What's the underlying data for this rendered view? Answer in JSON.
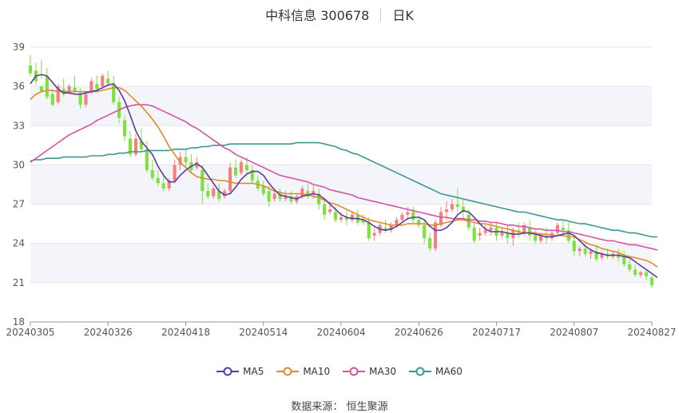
{
  "header": {
    "stock_name": "中科信息 300678",
    "period": "日K"
  },
  "footer": {
    "source_label": "数据来源：",
    "source_name": "恒生聚源"
  },
  "colors": {
    "up": "#f4807f",
    "down": "#7fe13f",
    "ma5": "#5b3b9e",
    "ma10": "#e08a2c",
    "ma30": "#d454a4",
    "ma60": "#3d9696",
    "band": "#f4f5fb"
  },
  "chart_data": {
    "type": "candlestick",
    "ylim": [
      18,
      39
    ],
    "yticks": [
      18,
      21,
      24,
      27,
      30,
      33,
      36,
      39
    ],
    "xticks": [
      "20240305",
      "20240326",
      "20240418",
      "20240514",
      "20240604",
      "20240626",
      "20240717",
      "20240807",
      "20240827"
    ],
    "legend": [
      "MA5",
      "MA10",
      "MA30",
      "MA60"
    ],
    "candles": [
      [
        37.6,
        38.4,
        37.0,
        36.8
      ],
      [
        37.2,
        37.8,
        36.4,
        36.1
      ],
      [
        36.0,
        38.0,
        35.6,
        36.6
      ],
      [
        36.8,
        37.4,
        35.2,
        35.0
      ],
      [
        35.4,
        35.8,
        34.6,
        34.5
      ],
      [
        34.8,
        36.2,
        36.0,
        34.6
      ],
      [
        35.8,
        36.6,
        35.4,
        35.2
      ],
      [
        35.6,
        36.2,
        36.0,
        35.4
      ],
      [
        35.9,
        36.8,
        35.6,
        35.5
      ],
      [
        35.5,
        35.9,
        34.6,
        34.3
      ],
      [
        34.6,
        35.6,
        35.4,
        34.4
      ],
      [
        35.6,
        36.6,
        36.4,
        35.4
      ],
      [
        36.2,
        36.8,
        35.8,
        35.6
      ],
      [
        36.0,
        37.0,
        36.8,
        35.8
      ],
      [
        36.6,
        37.2,
        36.2,
        36.0
      ],
      [
        36.2,
        36.8,
        34.8,
        34.6
      ],
      [
        34.8,
        35.2,
        33.6,
        33.2
      ],
      [
        33.4,
        33.8,
        32.2,
        31.8
      ],
      [
        32.0,
        32.6,
        30.8,
        30.6
      ],
      [
        30.8,
        32.4,
        32.0,
        30.6
      ],
      [
        31.8,
        32.8,
        31.2,
        31.0
      ],
      [
        31.2,
        31.8,
        29.6,
        29.4
      ],
      [
        29.6,
        30.4,
        29.0,
        28.8
      ],
      [
        29.0,
        29.6,
        28.6,
        28.4
      ],
      [
        28.6,
        29.4,
        28.2,
        28.0
      ],
      [
        28.2,
        29.0,
        28.8,
        28.0
      ],
      [
        28.8,
        30.4,
        30.0,
        28.6
      ],
      [
        30.0,
        31.0,
        30.6,
        29.6
      ],
      [
        30.6,
        31.2,
        30.2,
        29.8
      ],
      [
        30.2,
        30.8,
        29.6,
        29.4
      ],
      [
        29.8,
        30.6,
        30.2,
        29.6
      ],
      [
        29.6,
        30.0,
        28.0,
        27.0
      ],
      [
        28.0,
        28.6,
        27.6,
        27.4
      ],
      [
        27.6,
        28.4,
        28.2,
        27.4
      ],
      [
        28.0,
        28.6,
        27.4,
        27.2
      ],
      [
        27.6,
        28.2,
        28.0,
        27.4
      ],
      [
        28.0,
        30.2,
        29.8,
        27.8
      ],
      [
        29.8,
        30.4,
        29.2,
        29.0
      ],
      [
        29.4,
        30.4,
        30.2,
        29.2
      ],
      [
        30.0,
        30.6,
        29.6,
        29.2
      ],
      [
        29.6,
        30.0,
        28.8,
        28.6
      ],
      [
        28.8,
        29.2,
        28.2,
        28.0
      ],
      [
        28.4,
        28.8,
        27.8,
        27.6
      ],
      [
        28.0,
        28.4,
        27.2,
        26.8
      ],
      [
        27.4,
        28.0,
        27.8,
        27.2
      ],
      [
        27.8,
        28.2,
        27.4,
        27.2
      ],
      [
        27.4,
        28.0,
        27.6,
        27.2
      ],
      [
        27.6,
        28.0,
        27.2,
        27.0
      ],
      [
        27.2,
        27.8,
        27.6,
        27.0
      ],
      [
        27.6,
        28.4,
        28.2,
        27.4
      ],
      [
        28.0,
        28.6,
        27.6,
        27.4
      ],
      [
        27.8,
        28.4,
        28.0,
        27.4
      ],
      [
        27.8,
        28.2,
        27.0,
        26.6
      ],
      [
        27.0,
        27.4,
        26.2,
        25.8
      ],
      [
        26.4,
        27.0,
        26.6,
        26.2
      ],
      [
        26.4,
        26.8,
        25.8,
        25.6
      ],
      [
        25.8,
        26.4,
        26.0,
        25.6
      ],
      [
        26.0,
        26.6,
        25.8,
        25.4
      ],
      [
        25.8,
        26.4,
        26.2,
        25.6
      ],
      [
        26.2,
        26.6,
        25.6,
        25.4
      ],
      [
        25.8,
        26.2,
        25.6,
        25.4
      ],
      [
        25.6,
        26.0,
        24.4,
        24.2
      ],
      [
        24.6,
        25.2,
        24.8,
        24.2
      ],
      [
        24.8,
        25.6,
        25.4,
        24.6
      ],
      [
        25.2,
        25.8,
        25.0,
        24.8
      ],
      [
        25.0,
        25.6,
        25.4,
        24.8
      ],
      [
        25.4,
        26.0,
        25.8,
        25.2
      ],
      [
        25.8,
        26.4,
        26.2,
        25.6
      ],
      [
        26.2,
        26.8,
        26.4,
        25.8
      ],
      [
        26.4,
        26.8,
        25.8,
        25.6
      ],
      [
        25.8,
        26.2,
        25.4,
        25.2
      ],
      [
        25.4,
        25.8,
        24.4,
        24.0
      ],
      [
        24.4,
        24.8,
        23.6,
        23.4
      ],
      [
        23.6,
        25.8,
        25.6,
        23.4
      ],
      [
        25.4,
        26.8,
        26.4,
        25.2
      ],
      [
        26.4,
        27.2,
        26.6,
        25.8
      ],
      [
        26.6,
        27.4,
        27.0,
        26.4
      ],
      [
        27.0,
        28.2,
        26.8,
        26.4
      ],
      [
        26.8,
        27.4,
        26.4,
        25.8
      ],
      [
        26.2,
        26.6,
        25.2,
        25.0
      ],
      [
        25.2,
        25.6,
        24.2,
        24.0
      ],
      [
        24.6,
        25.2,
        24.8,
        24.2
      ],
      [
        24.8,
        25.4,
        25.0,
        24.6
      ],
      [
        25.0,
        25.6,
        25.2,
        24.6
      ],
      [
        25.2,
        25.6,
        24.6,
        24.2
      ],
      [
        24.6,
        25.2,
        24.9,
        24.4
      ],
      [
        24.8,
        25.4,
        24.4,
        24.0
      ],
      [
        24.4,
        25.2,
        25.0,
        23.8
      ],
      [
        25.0,
        25.6,
        24.8,
        24.4
      ],
      [
        24.8,
        25.6,
        25.4,
        24.6
      ],
      [
        25.2,
        25.8,
        24.6,
        24.2
      ],
      [
        24.6,
        25.0,
        24.2,
        24.0
      ],
      [
        24.2,
        24.8,
        24.6,
        24.0
      ],
      [
        24.6,
        25.2,
        24.4,
        24.0
      ],
      [
        24.4,
        25.0,
        24.8,
        24.2
      ],
      [
        24.8,
        25.6,
        25.4,
        24.6
      ],
      [
        25.2,
        25.8,
        25.0,
        24.6
      ],
      [
        25.0,
        25.6,
        24.2,
        24.0
      ],
      [
        24.2,
        24.6,
        23.4,
        23.0
      ],
      [
        23.4,
        23.8,
        23.6,
        23.0
      ],
      [
        23.6,
        24.0,
        23.2,
        23.0
      ],
      [
        23.2,
        23.6,
        23.4,
        22.8
      ],
      [
        23.4,
        23.8,
        22.8,
        22.6
      ],
      [
        22.9,
        23.4,
        23.2,
        22.7
      ],
      [
        23.2,
        23.6,
        23.0,
        22.8
      ],
      [
        23.0,
        23.4,
        23.2,
        22.8
      ],
      [
        23.2,
        23.6,
        22.9,
        22.6
      ],
      [
        23.0,
        23.4,
        22.4,
        22.2
      ],
      [
        22.4,
        22.8,
        22.0,
        21.8
      ],
      [
        22.0,
        22.4,
        21.6,
        21.4
      ],
      [
        21.6,
        21.9,
        21.8,
        21.4
      ],
      [
        21.8,
        22.0,
        21.5,
        21.2
      ],
      [
        21.4,
        21.6,
        20.8,
        20.6
      ]
    ],
    "ma5": [
      36.2,
      36.8,
      36.9,
      36.8,
      36.3,
      35.8,
      35.5,
      35.5,
      35.4,
      35.4,
      35.5,
      35.6,
      35.7,
      35.9,
      36.1,
      36.2,
      35.7,
      34.9,
      33.8,
      32.6,
      31.8,
      31.3,
      30.8,
      29.9,
      29.2,
      28.7,
      28.7,
      29.2,
      29.6,
      29.9,
      30.1,
      29.8,
      29.2,
      28.6,
      28.0,
      27.7,
      27.8,
      28.3,
      28.9,
      29.3,
      29.5,
      29.5,
      29.2,
      28.6,
      28.1,
      27.7,
      27.6,
      27.5,
      27.4,
      27.6,
      27.7,
      27.8,
      27.7,
      27.4,
      27.0,
      26.6,
      26.2,
      26.0,
      25.9,
      25.9,
      25.8,
      25.6,
      25.3,
      25.1,
      25.0,
      25.1,
      25.3,
      25.6,
      25.9,
      26.0,
      26.0,
      25.8,
      25.3,
      25.0,
      25.0,
      25.2,
      25.6,
      26.2,
      26.5,
      26.4,
      26.0,
      25.5,
      25.1,
      24.9,
      24.9,
      24.9,
      24.8,
      24.7,
      24.7,
      24.8,
      24.8,
      24.7,
      24.6,
      24.5,
      24.5,
      24.6,
      24.7,
      24.8,
      24.6,
      24.2,
      23.8,
      23.5,
      23.3,
      23.2,
      23.1,
      23.1,
      23.1,
      23.0,
      22.9,
      22.6,
      22.3,
      22.0,
      21.7,
      21.4
    ],
    "ma10": [
      35.0,
      35.4,
      35.6,
      35.7,
      35.7,
      35.6,
      35.6,
      35.6,
      35.6,
      35.6,
      35.6,
      35.6,
      35.6,
      35.7,
      35.8,
      35.9,
      35.9,
      35.7,
      35.3,
      34.9,
      34.5,
      34.0,
      33.5,
      32.9,
      32.2,
      31.4,
      30.8,
      30.2,
      29.8,
      29.4,
      29.1,
      29.0,
      28.9,
      28.9,
      28.8,
      28.8,
      28.7,
      28.6,
      28.6,
      28.6,
      28.6,
      28.5,
      28.4,
      28.2,
      28.0,
      27.9,
      27.8,
      27.8,
      27.8,
      27.8,
      27.7,
      27.6,
      27.5,
      27.3,
      27.1,
      27.0,
      26.8,
      26.6,
      26.4,
      26.2,
      26.0,
      25.8,
      25.7,
      25.6,
      25.5,
      25.4,
      25.4,
      25.4,
      25.5,
      25.5,
      25.5,
      25.5,
      25.4,
      25.4,
      25.5,
      25.6,
      25.7,
      25.8,
      25.8,
      25.7,
      25.6,
      25.5,
      25.5,
      25.4,
      25.3,
      25.2,
      25.1,
      25.0,
      24.9,
      24.8,
      24.8,
      24.8,
      24.7,
      24.7,
      24.6,
      24.6,
      24.6,
      24.5,
      24.5,
      24.3,
      24.1,
      23.9,
      23.8,
      23.6,
      23.5,
      23.4,
      23.3,
      23.1,
      23.0,
      22.9,
      22.8,
      22.7,
      22.5,
      22.2
    ],
    "ma30": [
      30.2,
      30.5,
      30.8,
      31.1,
      31.4,
      31.7,
      32.0,
      32.3,
      32.5,
      32.7,
      32.9,
      33.1,
      33.4,
      33.6,
      33.8,
      34.0,
      34.2,
      34.4,
      34.5,
      34.6,
      34.6,
      34.6,
      34.5,
      34.3,
      34.1,
      33.9,
      33.7,
      33.5,
      33.3,
      33.0,
      32.8,
      32.5,
      32.2,
      31.9,
      31.6,
      31.3,
      31.1,
      30.8,
      30.6,
      30.4,
      30.2,
      30.0,
      29.8,
      29.6,
      29.4,
      29.2,
      29.1,
      29.0,
      28.9,
      28.8,
      28.7,
      28.5,
      28.4,
      28.3,
      28.1,
      28.0,
      27.9,
      27.8,
      27.7,
      27.5,
      27.4,
      27.3,
      27.2,
      27.1,
      27.0,
      26.9,
      26.8,
      26.7,
      26.6,
      26.5,
      26.4,
      26.3,
      26.2,
      26.1,
      26.0,
      26.0,
      25.9,
      25.9,
      25.9,
      25.8,
      25.8,
      25.7,
      25.7,
      25.6,
      25.6,
      25.5,
      25.4,
      25.4,
      25.3,
      25.3,
      25.2,
      25.1,
      25.1,
      25.0,
      25.0,
      25.0,
      24.9,
      24.9,
      24.8,
      24.7,
      24.6,
      24.5,
      24.4,
      24.3,
      24.2,
      24.2,
      24.1,
      24.0,
      23.9,
      23.9,
      23.8,
      23.7,
      23.6,
      23.5
    ],
    "ma60": [
      30.3,
      30.4,
      30.4,
      30.5,
      30.5,
      30.5,
      30.6,
      30.6,
      30.6,
      30.6,
      30.6,
      30.7,
      30.7,
      30.7,
      30.8,
      30.8,
      30.9,
      30.9,
      31.0,
      31.0,
      31.0,
      31.1,
      31.1,
      31.1,
      31.1,
      31.1,
      31.2,
      31.2,
      31.2,
      31.3,
      31.3,
      31.4,
      31.4,
      31.5,
      31.5,
      31.5,
      31.6,
      31.6,
      31.6,
      31.6,
      31.6,
      31.6,
      31.6,
      31.6,
      31.6,
      31.6,
      31.6,
      31.6,
      31.7,
      31.7,
      31.7,
      31.7,
      31.7,
      31.6,
      31.5,
      31.4,
      31.2,
      31.1,
      30.9,
      30.8,
      30.6,
      30.4,
      30.2,
      30.0,
      29.8,
      29.6,
      29.4,
      29.2,
      29.0,
      28.8,
      28.6,
      28.4,
      28.2,
      28.0,
      27.8,
      27.7,
      27.6,
      27.5,
      27.4,
      27.3,
      27.2,
      27.1,
      27.0,
      26.9,
      26.8,
      26.7,
      26.6,
      26.5,
      26.4,
      26.4,
      26.3,
      26.2,
      26.1,
      26.0,
      25.9,
      25.8,
      25.8,
      25.7,
      25.6,
      25.5,
      25.5,
      25.4,
      25.3,
      25.2,
      25.1,
      25.0,
      25.0,
      24.9,
      24.8,
      24.8,
      24.7,
      24.6,
      24.5,
      24.5
    ]
  }
}
